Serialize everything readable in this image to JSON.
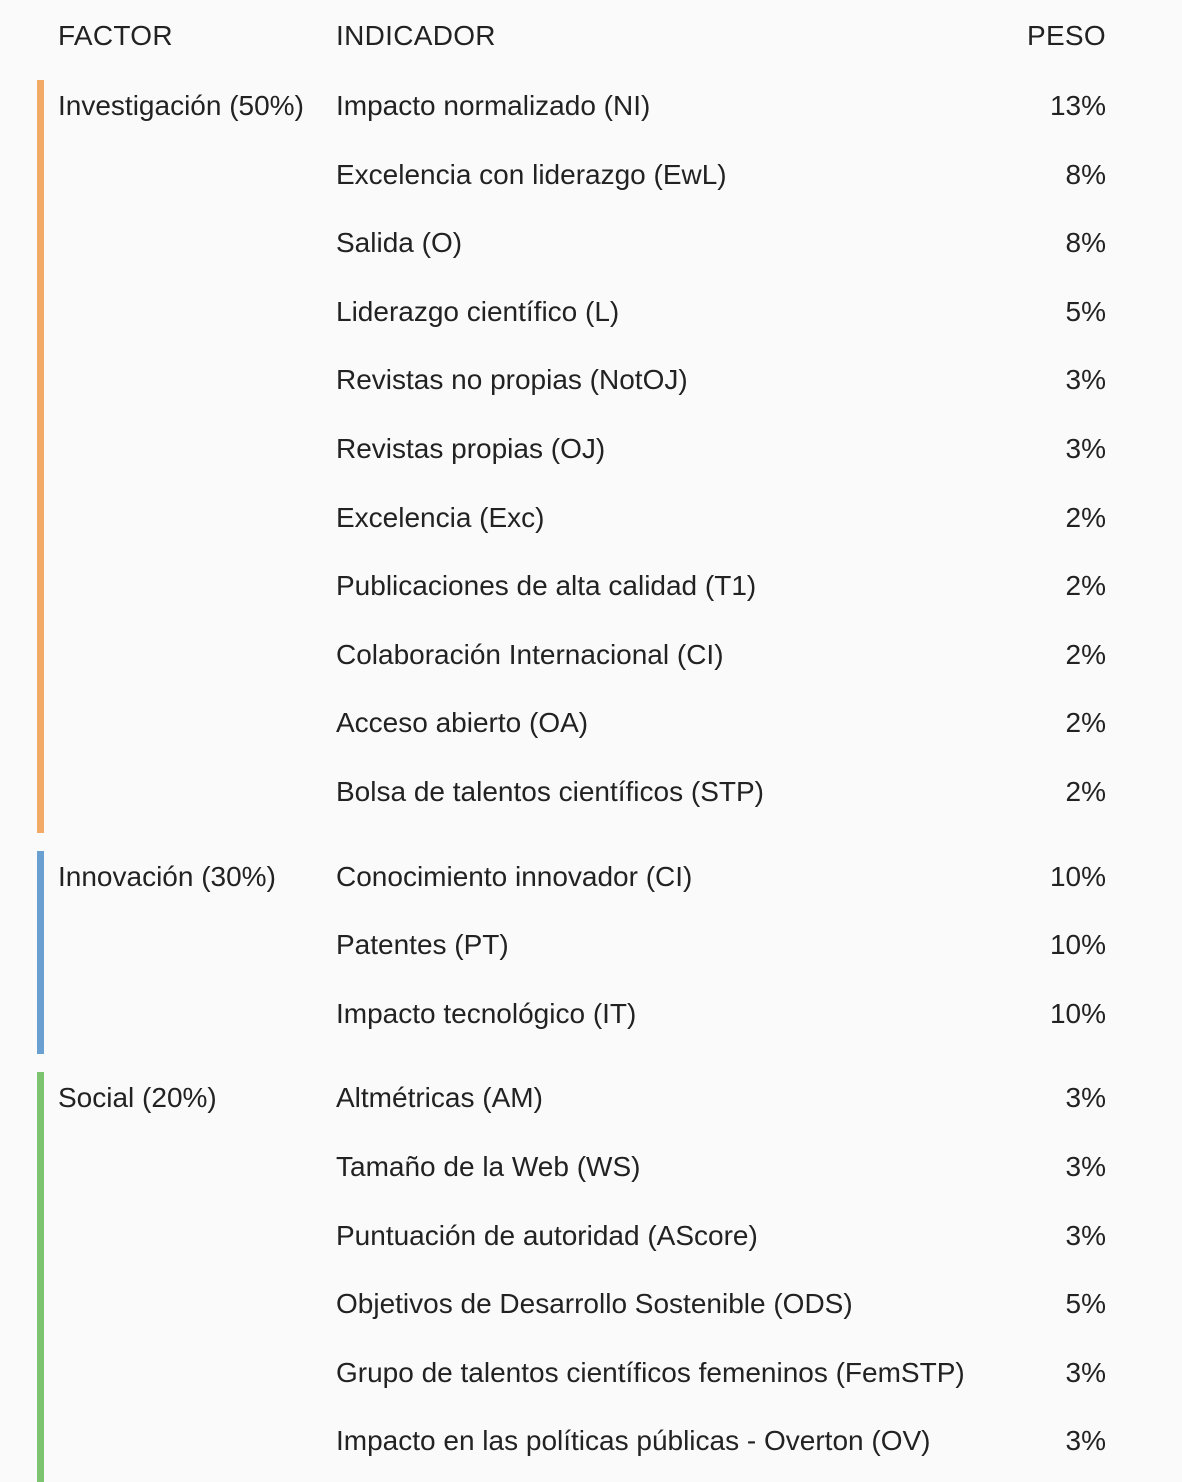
{
  "header": {
    "factor": "FACTOR",
    "indicador": "INDICADOR",
    "peso": "PESO"
  },
  "groups": [
    {
      "factor": "Investigación (50%)",
      "color": "#f2aa66",
      "rows": [
        {
          "indicator": "Impacto normalizado (NI)",
          "weight": "13%"
        },
        {
          "indicator": "Excelencia con liderazgo (EwL)",
          "weight": "8%"
        },
        {
          "indicator": "Salida (O)",
          "weight": "8%"
        },
        {
          "indicator": "Liderazgo científico (L)",
          "weight": "5%"
        },
        {
          "indicator": "Revistas no propias (NotOJ)",
          "weight": "3%"
        },
        {
          "indicator": "Revistas propias (OJ)",
          "weight": "3%"
        },
        {
          "indicator": "Excelencia (Exc)",
          "weight": "2%"
        },
        {
          "indicator": "Publicaciones de alta calidad (T1)",
          "weight": "2%"
        },
        {
          "indicator": "Colaboración Internacional (CI)",
          "weight": "2%"
        },
        {
          "indicator": "Acceso abierto (OA)",
          "weight": "2%"
        },
        {
          "indicator": "Bolsa de talentos científicos (STP)",
          "weight": "2%"
        }
      ]
    },
    {
      "factor": "Innovación (30%)",
      "color": "#6a9fd2",
      "rows": [
        {
          "indicator": "Conocimiento innovador (CI)",
          "weight": "10%"
        },
        {
          "indicator": "Patentes (PT)",
          "weight": "10%"
        },
        {
          "indicator": "Impacto tecnológico (IT)",
          "weight": "10%"
        }
      ]
    },
    {
      "factor": "Social (20%)",
      "color": "#7cc46f",
      "rows": [
        {
          "indicator": "Altmétricas (AM)",
          "weight": "3%"
        },
        {
          "indicator": "Tamaño de la Web (WS)",
          "weight": "3%"
        },
        {
          "indicator": "Puntuación de autoridad (AScore)",
          "weight": "3%"
        },
        {
          "indicator": "Objetivos de Desarrollo Sostenible (ODS)",
          "weight": "5%"
        },
        {
          "indicator": "Grupo de talentos científicos femeninos (FemSTP)",
          "weight": "3%"
        },
        {
          "indicator": "Impacto en las políticas públicas - Overton (OV)",
          "weight": "3%"
        }
      ]
    }
  ]
}
